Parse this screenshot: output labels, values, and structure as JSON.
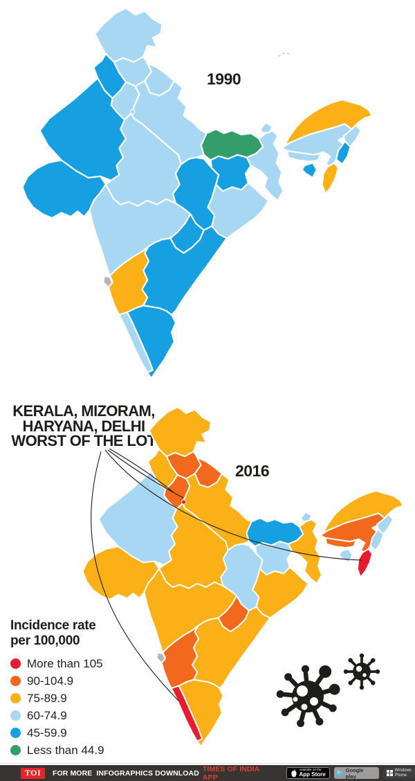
{
  "infographic": {
    "headline_lines": [
      "KERALA, MIZORAM,",
      "HARYANA, DELHI",
      "WORST OF THE LOT"
    ],
    "legend_title_lines": [
      "Incidence rate",
      "per 100,000"
    ],
    "categories": [
      {
        "label": "More than 105",
        "color": "#e81c2e"
      },
      {
        "label": "90-104.9",
        "color": "#f2691e"
      },
      {
        "label": "75-89.9",
        "color": "#fbb017"
      },
      {
        "label": "60-74.9",
        "color": "#a8d7f3"
      },
      {
        "label": "45-59.9",
        "color": "#16a0e2"
      },
      {
        "label": "Less than 44.9",
        "color": "#339e6a"
      }
    ],
    "no_data_color": "#b5b5b5",
    "maps": [
      {
        "year": "1990",
        "states": {
          "jammu_kashmir": "60-74.9",
          "himachal_pradesh": "60-74.9",
          "punjab": "45-59.9",
          "uttarakhand": "60-74.9",
          "haryana": "60-74.9",
          "delhi": "60-74.9",
          "rajasthan": "45-59.9",
          "gujarat": "45-59.9",
          "uttar_pradesh": "60-74.9",
          "madhya_pradesh": "60-74.9",
          "chhattisgarh": "45-59.9",
          "bihar": "Less than 44.9",
          "jharkhand": "45-59.9",
          "west_bengal": "60-74.9",
          "sikkim": "60-74.9",
          "arunachal_pradesh": "75-89.9",
          "assam": "60-74.9",
          "meghalaya": "60-74.9",
          "nagaland": "60-74.9",
          "manipur": "45-59.9",
          "mizoram": "75-89.9",
          "tripura": "45-59.9",
          "odisha": "60-74.9",
          "maharashtra": "60-74.9",
          "telangana": "45-59.9",
          "andhra_pradesh": "45-59.9",
          "karnataka": "75-89.9",
          "goa": "none",
          "kerala": "60-74.9",
          "tamil_nadu": "45-59.9"
        }
      },
      {
        "year": "2016",
        "states": {
          "jammu_kashmir": "75-89.9",
          "himachal_pradesh": "90-104.9",
          "punjab": "75-89.9",
          "uttarakhand": "90-104.9",
          "haryana": "90-104.9",
          "delhi": "More than 105",
          "rajasthan": "60-74.9",
          "gujarat": "75-89.9",
          "uttar_pradesh": "75-89.9",
          "madhya_pradesh": "75-89.9",
          "chhattisgarh": "60-74.9",
          "bihar": "45-59.9",
          "jharkhand": "60-74.9",
          "west_bengal": "75-89.9",
          "sikkim": "60-74.9",
          "arunachal_pradesh": "75-89.9",
          "assam": "90-104.9",
          "meghalaya": "90-104.9",
          "nagaland": "60-74.9",
          "manipur": "60-74.9",
          "mizoram": "More than 105",
          "tripura": "60-74.9",
          "odisha": "75-89.9",
          "maharashtra": "75-89.9",
          "telangana": "90-104.9",
          "andhra_pradesh": "75-89.9",
          "karnataka": "90-104.9",
          "goa": "none",
          "kerala": "More than 105",
          "tamil_nadu": "75-89.9"
        }
      }
    ],
    "callout_targets": [
      "kerala",
      "mizoram",
      "haryana",
      "delhi"
    ]
  },
  "footer": {
    "logo": "TOI",
    "text": "FOR MORE  INFOGRAPHICS DOWNLOAD",
    "highlight": "TIMES OF INDIA  APP",
    "badges": {
      "appstore_line1": "Available on the",
      "appstore_line2": "App Store",
      "googleplay": "Google play",
      "windows_line1": "Windows",
      "windows_line2": "Phone"
    }
  }
}
